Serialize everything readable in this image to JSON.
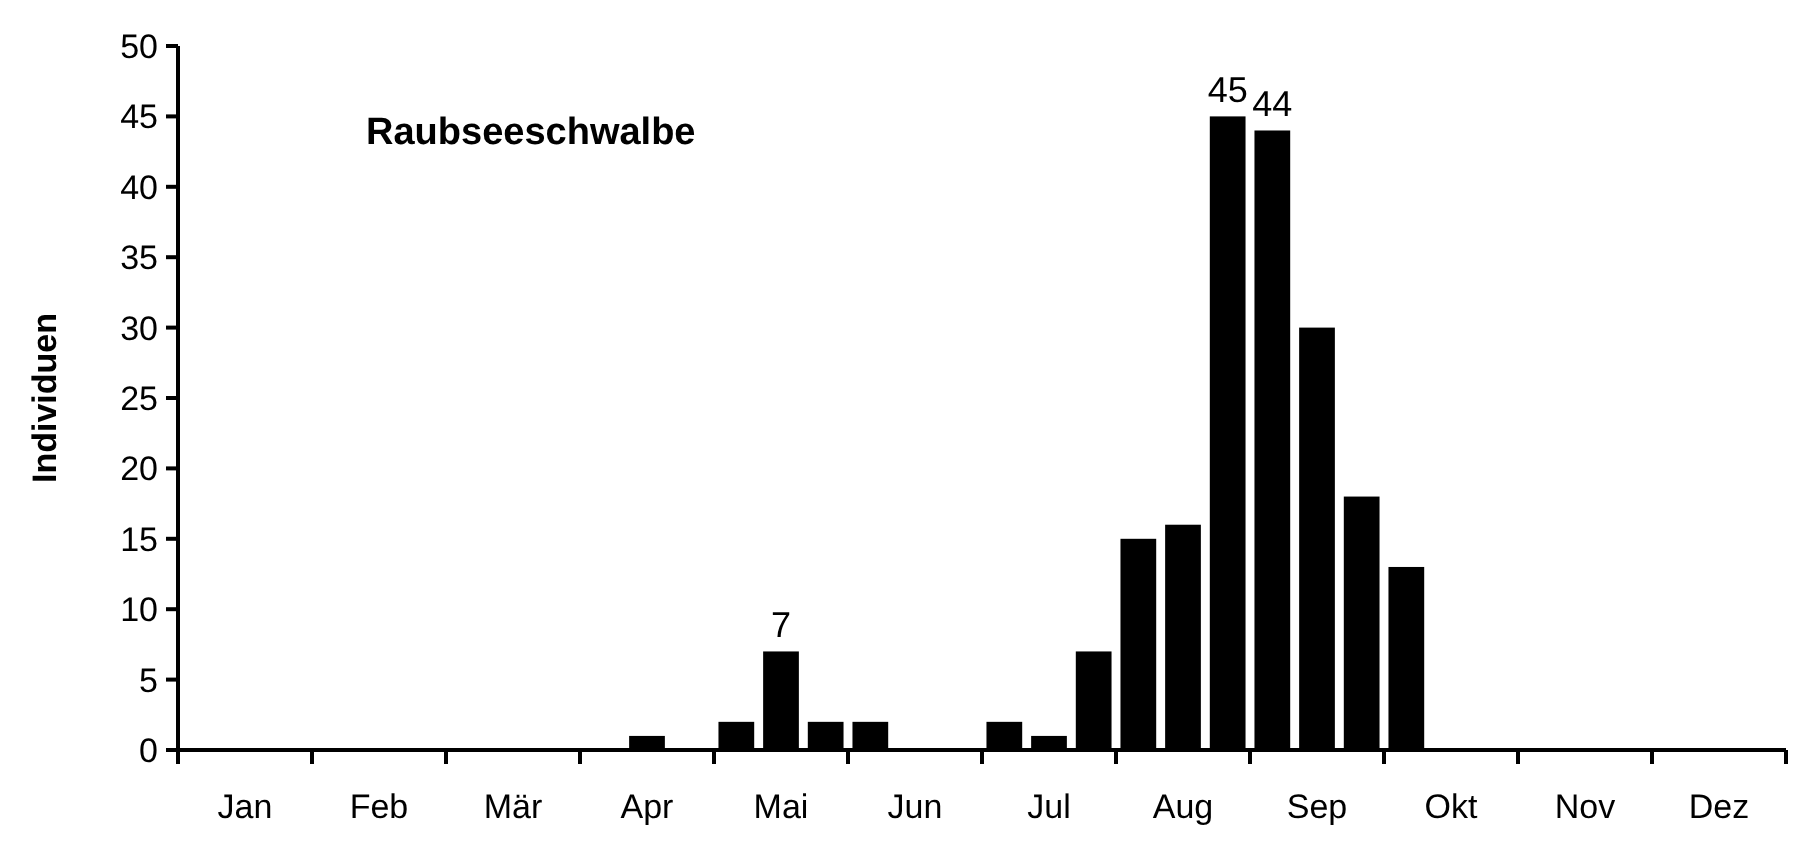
{
  "chart_data": {
    "type": "bar",
    "title": "Raubseeschwalbe",
    "ylabel": "Individuen",
    "categories": [
      null,
      "Jan",
      null,
      null,
      "Feb",
      null,
      null,
      "Mär",
      null,
      null,
      "Apr",
      null,
      null,
      "Mai",
      null,
      null,
      "Jun",
      null,
      null,
      "Jul",
      null,
      null,
      "Aug",
      null,
      null,
      "Sep",
      null,
      null,
      "Okt",
      null,
      null,
      "Nov",
      null,
      null,
      "Dez",
      null
    ],
    "values": [
      null,
      null,
      null,
      null,
      null,
      null,
      null,
      null,
      null,
      null,
      1,
      null,
      2,
      7,
      2,
      2,
      null,
      null,
      2,
      1,
      7,
      15,
      16,
      45,
      44,
      30,
      18,
      13,
      null,
      null,
      null,
      null,
      null,
      null,
      null,
      null
    ],
    "value_labels": [
      null,
      null,
      null,
      null,
      null,
      null,
      null,
      null,
      null,
      null,
      null,
      null,
      null,
      "7",
      null,
      null,
      null,
      null,
      null,
      null,
      null,
      null,
      null,
      "45",
      "44",
      null,
      null,
      null,
      null,
      null,
      null,
      null,
      null,
      null,
      null,
      null
    ],
    "color": "#000000",
    "ylim": [
      0,
      50
    ],
    "yticks": [
      0,
      5,
      10,
      15,
      20,
      25,
      30,
      35,
      40,
      45,
      50
    ],
    "grid": false
  }
}
